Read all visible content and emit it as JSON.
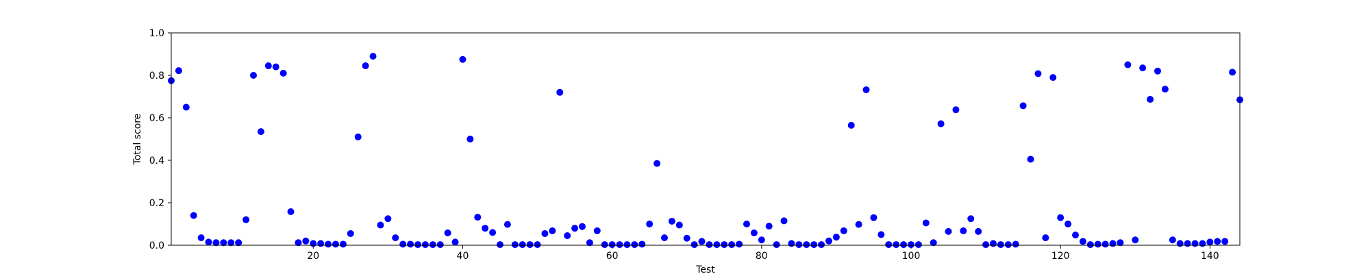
{
  "chart_data": {
    "type": "scatter",
    "title": "",
    "xlabel": "Test",
    "ylabel": "Total score",
    "xlim": [
      1,
      144
    ],
    "ylim": [
      0.0,
      1.0
    ],
    "xticks": [
      20,
      40,
      60,
      80,
      100,
      120,
      140
    ],
    "xtick_labels": [
      "20",
      "40",
      "60",
      "80",
      "100",
      "120",
      "140"
    ],
    "yticks": [
      0.0,
      0.2,
      0.4,
      0.6,
      0.8,
      1.0
    ],
    "ytick_labels": [
      "0.0",
      "0.2",
      "0.4",
      "0.6",
      "0.8",
      "1.0"
    ],
    "grid": false,
    "marker_color": "#0000ff",
    "x": [
      1,
      2,
      3,
      4,
      5,
      6,
      7,
      8,
      9,
      10,
      11,
      12,
      13,
      14,
      15,
      16,
      17,
      18,
      19,
      20,
      21,
      22,
      23,
      24,
      25,
      26,
      27,
      28,
      29,
      30,
      31,
      32,
      33,
      34,
      35,
      36,
      37,
      38,
      39,
      40,
      41,
      42,
      43,
      44,
      45,
      46,
      47,
      48,
      49,
      50,
      51,
      52,
      53,
      54,
      55,
      56,
      57,
      58,
      59,
      60,
      61,
      62,
      63,
      64,
      65,
      66,
      67,
      68,
      69,
      70,
      71,
      72,
      73,
      74,
      75,
      76,
      77,
      78,
      79,
      80,
      81,
      82,
      83,
      84,
      85,
      86,
      87,
      88,
      89,
      90,
      91,
      92,
      93,
      94,
      95,
      96,
      97,
      98,
      99,
      100,
      101,
      102,
      103,
      104,
      105,
      106,
      107,
      108,
      109,
      110,
      111,
      112,
      113,
      114,
      115,
      116,
      117,
      118,
      119,
      120,
      121,
      122,
      123,
      124,
      125,
      126,
      127,
      128,
      129,
      130,
      131,
      132,
      133,
      134,
      135,
      136,
      137,
      138,
      139,
      140,
      141,
      142,
      143,
      144
    ],
    "y": [
      0.775,
      0.822,
      0.65,
      0.14,
      0.035,
      0.015,
      0.012,
      0.012,
      0.012,
      0.012,
      0.12,
      0.8,
      0.535,
      0.845,
      0.84,
      0.81,
      0.158,
      0.012,
      0.02,
      0.008,
      0.008,
      0.005,
      0.005,
      0.005,
      0.055,
      0.51,
      0.845,
      0.89,
      0.095,
      0.125,
      0.035,
      0.005,
      0.005,
      0.003,
      0.003,
      0.003,
      0.003,
      0.058,
      0.015,
      0.875,
      0.5,
      0.132,
      0.08,
      0.06,
      0.003,
      0.098,
      0.003,
      0.003,
      0.003,
      0.003,
      0.055,
      0.068,
      0.72,
      0.045,
      0.08,
      0.088,
      0.012,
      0.068,
      0.003,
      0.003,
      0.003,
      0.003,
      0.003,
      0.005,
      0.1,
      0.385,
      0.035,
      0.113,
      0.095,
      0.033,
      0.003,
      0.018,
      0.003,
      0.003,
      0.003,
      0.003,
      0.005,
      0.1,
      0.058,
      0.025,
      0.09,
      0.003,
      0.115,
      0.008,
      0.003,
      0.003,
      0.003,
      0.003,
      0.02,
      0.038,
      0.068,
      0.565,
      0.098,
      0.732,
      0.13,
      0.05,
      0.003,
      0.003,
      0.003,
      0.003,
      0.003,
      0.105,
      0.012,
      0.572,
      0.065,
      0.638,
      0.068,
      0.125,
      0.065,
      0.003,
      0.008,
      0.003,
      0.003,
      0.005,
      0.657,
      0.405,
      0.808,
      0.035,
      0.79,
      0.13,
      0.1,
      0.048,
      0.018,
      0.003,
      0.005,
      0.005,
      0.008,
      0.012,
      0.85,
      0.025,
      0.835,
      0.687,
      0.82,
      0.735,
      0.025,
      0.008,
      0.008,
      0.008,
      0.008,
      0.015,
      0.018,
      0.018,
      0.815,
      0.685
    ]
  }
}
